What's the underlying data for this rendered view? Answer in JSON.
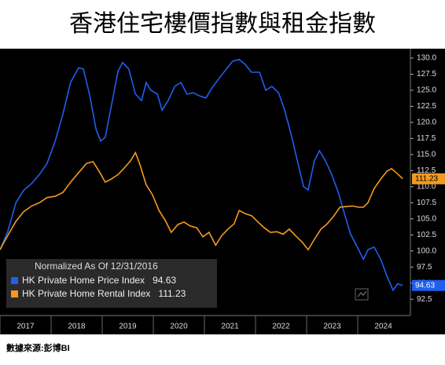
{
  "chart_data": {
    "type": "line",
    "title": "香港住宅樓價指數與租金指數",
    "subtitle": "Normalized As Of 12/31/2016",
    "source": "數據來源:彭博BI",
    "xlim": [
      2017,
      2025.03
    ],
    "xticks": [
      2017,
      2018,
      2019,
      2020,
      2021,
      2022,
      2023,
      2024
    ],
    "ylim": [
      90.2,
      131.1
    ],
    "yticks": [
      92.5,
      {
        "value": 95,
        "label": "95.0"
      },
      97.5,
      {
        "value": 100,
        "label": "100.0"
      },
      102.5,
      {
        "value": 105,
        "label": "105.0"
      },
      107.5,
      {
        "value": 110,
        "label": "110.0"
      },
      112.5,
      {
        "value": 115,
        "label": "115.0"
      },
      117.5,
      {
        "value": 120,
        "label": "120.0"
      },
      122.5,
      {
        "value": 125,
        "label": "125.0"
      },
      127.5,
      {
        "value": 130,
        "label": "130.0"
      }
    ],
    "series": [
      {
        "name": "HK Private Home Price Index",
        "color": "#1f5ff0",
        "x": [
          2017.0,
          2017.15,
          2017.31,
          2017.46,
          2017.62,
          2017.77,
          2017.92,
          2018.08,
          2018.23,
          2018.38,
          2018.54,
          2018.63,
          2018.75,
          2018.88,
          2018.97,
          2019.06,
          2019.18,
          2019.31,
          2019.4,
          2019.52,
          2019.65,
          2019.77,
          2019.86,
          2019.95,
          2020.08,
          2020.17,
          2020.29,
          2020.42,
          2020.54,
          2020.66,
          2020.78,
          2020.91,
          2021.03,
          2021.15,
          2021.31,
          2021.43,
          2021.55,
          2021.68,
          2021.8,
          2021.92,
          2022.08,
          2022.2,
          2022.32,
          2022.45,
          2022.57,
          2022.69,
          2022.82,
          2022.94,
          2023.03,
          2023.15,
          2023.25,
          2023.37,
          2023.49,
          2023.62,
          2023.74,
          2023.86,
          2023.98,
          2024.11,
          2024.2,
          2024.32,
          2024.45,
          2024.57,
          2024.69,
          2024.78,
          2024.88
        ],
        "values": [
          100.2,
          103.0,
          107.5,
          109.4,
          110.5,
          111.9,
          113.6,
          117.1,
          121.3,
          126.2,
          128.5,
          128.3,
          124.4,
          118.9,
          117.1,
          117.7,
          122.6,
          128.0,
          129.3,
          128.3,
          124.4,
          123.4,
          126.2,
          125.0,
          124.4,
          121.9,
          123.4,
          125.6,
          126.2,
          124.4,
          124.6,
          124.1,
          123.8,
          125.4,
          127.1,
          128.3,
          129.5,
          129.8,
          129.0,
          127.8,
          127.8,
          125.0,
          125.6,
          124.6,
          121.9,
          118.3,
          114.0,
          110.0,
          109.5,
          114.0,
          115.6,
          114.0,
          111.9,
          109.1,
          105.8,
          102.6,
          100.8,
          98.7,
          100.2,
          100.6,
          98.7,
          96.1,
          93.9,
          94.9,
          94.63
        ]
      },
      {
        "name": "HK Private Home Rental Index",
        "color": "#f39a1e",
        "x": [
          2017.0,
          2017.15,
          2017.31,
          2017.46,
          2017.62,
          2017.77,
          2017.92,
          2018.08,
          2018.23,
          2018.38,
          2018.54,
          2018.69,
          2018.82,
          2018.94,
          2019.06,
          2019.18,
          2019.31,
          2019.43,
          2019.55,
          2019.65,
          2019.74,
          2019.86,
          2019.98,
          2020.11,
          2020.23,
          2020.35,
          2020.48,
          2020.6,
          2020.72,
          2020.85,
          2020.97,
          2021.09,
          2021.22,
          2021.34,
          2021.46,
          2021.58,
          2021.68,
          2021.8,
          2021.92,
          2022.05,
          2022.17,
          2022.29,
          2022.42,
          2022.54,
          2022.66,
          2022.78,
          2022.91,
          2023.03,
          2023.15,
          2023.28,
          2023.4,
          2023.52,
          2023.65,
          2023.77,
          2023.89,
          2024.02,
          2024.11,
          2024.2,
          2024.32,
          2024.45,
          2024.57,
          2024.66,
          2024.75,
          2024.88
        ],
        "values": [
          100.2,
          102.4,
          104.6,
          106.1,
          107.0,
          107.5,
          108.3,
          108.5,
          109.1,
          110.7,
          112.2,
          113.6,
          113.9,
          112.4,
          110.7,
          111.2,
          111.9,
          112.9,
          114.0,
          115.3,
          113.4,
          110.3,
          108.8,
          106.3,
          104.8,
          102.9,
          104.1,
          104.5,
          103.9,
          103.6,
          102.2,
          102.9,
          100.9,
          102.4,
          103.4,
          104.2,
          106.3,
          105.8,
          105.5,
          104.5,
          103.6,
          102.9,
          103.0,
          102.6,
          103.4,
          102.4,
          101.4,
          100.2,
          101.8,
          103.4,
          104.2,
          105.3,
          106.8,
          106.9,
          107.0,
          106.8,
          106.8,
          107.5,
          109.7,
          111.2,
          112.4,
          112.8,
          112.2,
          111.23
        ]
      }
    ]
  }
}
